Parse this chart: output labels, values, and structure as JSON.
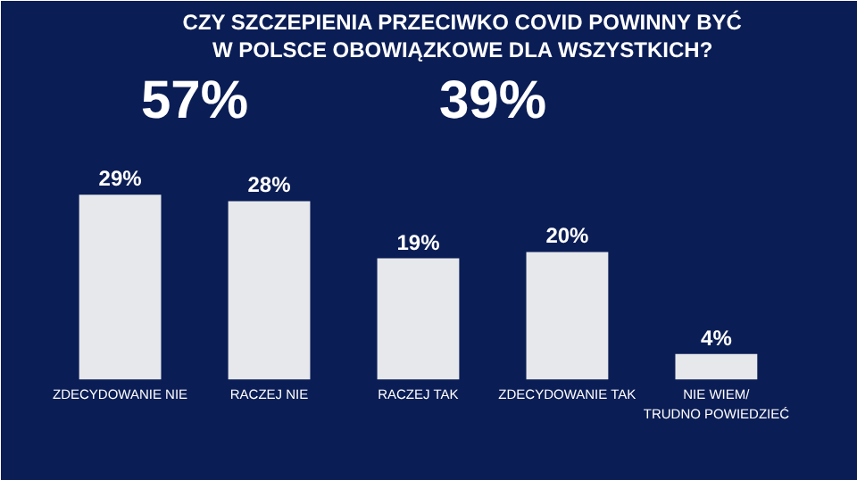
{
  "chart_data": {
    "type": "bar",
    "title": "CZY SZCZEPIENIA PRZECIWKO COVID POWINNY BYĆ\nW POLSCE OBOWIĄZKOWE DLA WSZYSTKICH?",
    "categories": [
      "ZDECYDOWANIE NIE",
      "RACZEJ NIE",
      "RACZEJ TAK",
      "ZDECYDOWANIE TAK",
      "NIE WIEM/\nTRUDNO POWIEDZIEĆ"
    ],
    "values": [
      29,
      28,
      19,
      20,
      4
    ],
    "colors": [
      "#e6e8ec",
      "#e6e8ec",
      "#e6e8ec",
      "#e6e8ec",
      "#e6e8ec"
    ],
    "value_labels": [
      "29%",
      "28%",
      "19%",
      "20%",
      "4%"
    ],
    "annotations": [
      "57%",
      "39%"
    ],
    "grid": false
  }
}
